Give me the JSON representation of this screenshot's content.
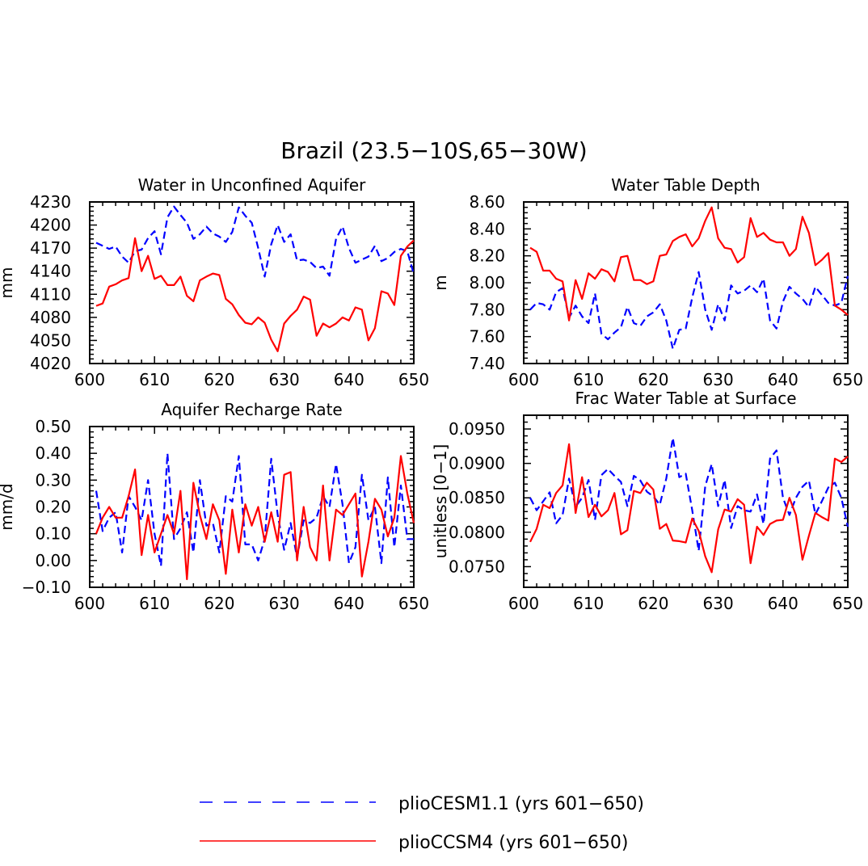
{
  "figure": {
    "title": "Brazil (23.5−10S,65−30W)"
  },
  "legend": {
    "placement": "bottom-center",
    "entries": [
      {
        "label": "plioCESM1.1 (yrs 601−650)",
        "color": "#0000ff",
        "style": "dashed"
      },
      {
        "label": "plioCCSM4 (yrs 601−650)",
        "color": "#ff0000",
        "style": "solid"
      }
    ]
  },
  "chart_data": [
    {
      "id": "aquifer",
      "type": "line",
      "title": "Water in Unconfined Aquifer",
      "xlabel": "",
      "ylabel": "mm",
      "xlim": [
        600,
        650
      ],
      "ylim": [
        4020,
        4230
      ],
      "xticks": [
        600,
        610,
        620,
        630,
        640,
        650
      ],
      "xtick_labels": [
        "600",
        "610",
        "620",
        "630",
        "640",
        "650"
      ],
      "yticks": [
        4020,
        4050,
        4080,
        4110,
        4140,
        4170,
        4200,
        4230
      ],
      "ytick_labels": [
        "4020",
        "4050",
        "4080",
        "4110",
        "4140",
        "4170",
        "4200",
        "4230"
      ],
      "x": [
        601,
        602,
        603,
        604,
        605,
        606,
        607,
        608,
        609,
        610,
        611,
        612,
        613,
        614,
        615,
        616,
        617,
        618,
        619,
        620,
        621,
        622,
        623,
        624,
        625,
        626,
        627,
        628,
        629,
        630,
        631,
        632,
        633,
        634,
        635,
        636,
        637,
        638,
        639,
        640,
        641,
        642,
        643,
        644,
        645,
        646,
        647,
        648,
        649,
        650
      ],
      "series": [
        {
          "name": "plioCESM1.1",
          "color": "#0000ff",
          "style": "dashed",
          "values": [
            4177,
            4173,
            4169,
            4172,
            4159,
            4151,
            4166,
            4168,
            4183,
            4192,
            4162,
            4210,
            4224,
            4213,
            4203,
            4182,
            4188,
            4198,
            4189,
            4185,
            4178,
            4191,
            4223,
            4212,
            4203,
            4170,
            4133,
            4175,
            4200,
            4178,
            4188,
            4154,
            4155,
            4152,
            4144,
            4146,
            4134,
            4182,
            4198,
            4170,
            4151,
            4155,
            4159,
            4173,
            4153,
            4157,
            4165,
            4169,
            4166,
            4136
          ]
        },
        {
          "name": "plioCCSM4",
          "color": "#ff0000",
          "style": "solid",
          "values": [
            4095,
            4098,
            4120,
            4123,
            4128,
            4131,
            4183,
            4140,
            4160,
            4130,
            4134,
            4122,
            4122,
            4133,
            4108,
            4101,
            4128,
            4133,
            4137,
            4135,
            4104,
            4097,
            4083,
            4073,
            4071,
            4080,
            4073,
            4051,
            4036,
            4072,
            4082,
            4090,
            4107,
            4103,
            4056,
            4072,
            4067,
            4072,
            4080,
            4076,
            4093,
            4090,
            4050,
            4066,
            4114,
            4111,
            4096,
            4160,
            4172,
            4180
          ]
        }
      ]
    },
    {
      "id": "wtd",
      "type": "line",
      "title": "Water Table Depth",
      "xlabel": "",
      "ylabel": "m",
      "xlim": [
        600,
        650
      ],
      "ylim": [
        7.4,
        8.6
      ],
      "xticks": [
        600,
        610,
        620,
        630,
        640,
        650
      ],
      "xtick_labels": [
        "600",
        "610",
        "620",
        "630",
        "640",
        "650"
      ],
      "yticks": [
        7.4,
        7.6,
        7.8,
        8.0,
        8.2,
        8.4,
        8.6
      ],
      "ytick_labels": [
        "7.40",
        "7.60",
        "7.80",
        "8.00",
        "8.20",
        "8.40",
        "8.60"
      ],
      "x": [
        601,
        602,
        603,
        604,
        605,
        606,
        607,
        608,
        609,
        610,
        611,
        612,
        613,
        614,
        615,
        616,
        617,
        618,
        619,
        620,
        621,
        622,
        623,
        624,
        625,
        626,
        627,
        628,
        629,
        630,
        631,
        632,
        633,
        634,
        635,
        636,
        637,
        638,
        639,
        640,
        641,
        642,
        643,
        644,
        645,
        646,
        647,
        648,
        649,
        650
      ],
      "series": [
        {
          "name": "plioCESM1.1",
          "color": "#0000ff",
          "style": "dashed",
          "values": [
            7.8,
            7.85,
            7.84,
            7.8,
            7.93,
            7.96,
            7.74,
            7.83,
            7.75,
            7.7,
            7.92,
            7.62,
            7.58,
            7.63,
            7.67,
            7.82,
            7.7,
            7.68,
            7.75,
            7.78,
            7.84,
            7.72,
            7.51,
            7.65,
            7.66,
            7.89,
            8.08,
            7.8,
            7.65,
            7.84,
            7.72,
            7.98,
            7.92,
            7.94,
            7.98,
            7.93,
            8.03,
            7.72,
            7.66,
            7.86,
            7.97,
            7.92,
            7.88,
            7.82,
            7.97,
            7.91,
            7.85,
            7.83,
            7.85,
            8.05
          ]
        },
        {
          "name": "plioCCSM4",
          "color": "#ff0000",
          "style": "solid",
          "values": [
            8.26,
            8.23,
            8.09,
            8.09,
            8.03,
            8.01,
            7.72,
            8.02,
            7.88,
            8.07,
            8.03,
            8.1,
            8.08,
            8.01,
            8.19,
            8.2,
            8.02,
            8.02,
            7.99,
            8.01,
            8.2,
            8.21,
            8.31,
            8.34,
            8.36,
            8.27,
            8.33,
            8.46,
            8.56,
            8.33,
            8.26,
            8.25,
            8.15,
            8.19,
            8.48,
            8.34,
            8.37,
            8.32,
            8.3,
            8.3,
            8.2,
            8.25,
            8.49,
            8.37,
            8.13,
            8.17,
            8.22,
            7.83,
            7.8,
            7.76
          ]
        }
      ]
    },
    {
      "id": "recharge",
      "type": "line",
      "title": "Aquifer Recharge Rate",
      "xlabel": "",
      "ylabel": "mm/d",
      "xlim": [
        600,
        650
      ],
      "ylim": [
        -0.1,
        0.5
      ],
      "xticks": [
        600,
        610,
        620,
        630,
        640,
        650
      ],
      "xtick_labels": [
        "600",
        "610",
        "620",
        "630",
        "640",
        "650"
      ],
      "yticks": [
        -0.1,
        0.0,
        0.1,
        0.2,
        0.3,
        0.4,
        0.5
      ],
      "ytick_labels": [
        "−0.10",
        "0.00",
        "0.10",
        "0.20",
        "0.30",
        "0.40",
        "0.50"
      ],
      "x": [
        601,
        602,
        603,
        604,
        605,
        606,
        607,
        608,
        609,
        610,
        611,
        612,
        613,
        614,
        615,
        616,
        617,
        618,
        619,
        620,
        621,
        622,
        623,
        624,
        625,
        626,
        627,
        628,
        629,
        630,
        631,
        632,
        633,
        634,
        635,
        636,
        637,
        638,
        639,
        640,
        641,
        642,
        643,
        644,
        645,
        646,
        647,
        648,
        649,
        650
      ],
      "series": [
        {
          "name": "plioCESM1.1",
          "color": "#0000ff",
          "style": "dashed",
          "values": [
            0.26,
            0.11,
            0.16,
            0.18,
            0.03,
            0.24,
            0.2,
            0.15,
            0.3,
            0.1,
            -0.02,
            0.4,
            0.08,
            0.12,
            0.18,
            0.03,
            0.3,
            0.13,
            0.14,
            0.03,
            0.24,
            0.22,
            0.39,
            0.06,
            0.06,
            0.0,
            0.08,
            0.38,
            0.17,
            0.04,
            0.14,
            0.01,
            0.15,
            0.14,
            0.16,
            0.24,
            0.2,
            0.36,
            0.21,
            -0.01,
            0.05,
            0.32,
            0.15,
            0.2,
            -0.01,
            0.31,
            0.05,
            0.28,
            0.08,
            0.08
          ]
        },
        {
          "name": "plioCCSM4",
          "color": "#ff0000",
          "style": "solid",
          "values": [
            0.1,
            0.16,
            0.2,
            0.16,
            0.16,
            0.24,
            0.34,
            0.02,
            0.17,
            0.03,
            0.1,
            0.17,
            0.1,
            0.26,
            -0.07,
            0.29,
            0.17,
            0.08,
            0.21,
            0.15,
            -0.05,
            0.19,
            0.03,
            0.21,
            0.13,
            0.2,
            0.07,
            0.18,
            0.07,
            0.32,
            0.33,
            0.0,
            0.2,
            0.05,
            0.0,
            0.28,
            0.0,
            0.19,
            0.17,
            0.21,
            0.25,
            -0.06,
            0.07,
            0.23,
            0.19,
            0.09,
            0.16,
            0.39,
            0.25,
            0.14
          ]
        }
      ]
    },
    {
      "id": "frac",
      "type": "line",
      "title": "Frac Water Table at Surface",
      "xlabel": "",
      "ylabel": "unitless [0−1]",
      "xlim": [
        600,
        650
      ],
      "ylim": [
        0.072,
        0.097
      ],
      "xticks": [
        600,
        610,
        620,
        630,
        640,
        650
      ],
      "xtick_labels": [
        "600",
        "610",
        "620",
        "630",
        "640",
        "650"
      ],
      "yticks": [
        0.075,
        0.08,
        0.085,
        0.09,
        0.095
      ],
      "ytick_labels": [
        "0.0750",
        "0.0800",
        "0.0850",
        "0.0900",
        "0.0950"
      ],
      "x": [
        601,
        602,
        603,
        604,
        605,
        606,
        607,
        608,
        609,
        610,
        611,
        612,
        613,
        614,
        615,
        616,
        617,
        618,
        619,
        620,
        621,
        622,
        623,
        624,
        625,
        626,
        627,
        628,
        629,
        630,
        631,
        632,
        633,
        634,
        635,
        636,
        637,
        638,
        639,
        640,
        641,
        642,
        643,
        644,
        645,
        646,
        647,
        648,
        649,
        650
      ],
      "series": [
        {
          "name": "plioCESM1.1",
          "color": "#0000ff",
          "style": "dashed",
          "values": [
            0.085,
            0.0832,
            0.0845,
            0.0858,
            0.0813,
            0.0825,
            0.0878,
            0.0837,
            0.085,
            0.0876,
            0.0818,
            0.0883,
            0.0892,
            0.0882,
            0.0873,
            0.0838,
            0.0882,
            0.0875,
            0.0859,
            0.0852,
            0.084,
            0.0878,
            0.0937,
            0.088,
            0.0885,
            0.0832,
            0.0773,
            0.0867,
            0.0899,
            0.0838,
            0.0876,
            0.0806,
            0.0838,
            0.0832,
            0.083,
            0.0855,
            0.0812,
            0.0907,
            0.0919,
            0.085,
            0.0825,
            0.085,
            0.0866,
            0.0875,
            0.0826,
            0.0845,
            0.0865,
            0.0872,
            0.085,
            0.0808
          ]
        },
        {
          "name": "plioCCSM4",
          "color": "#ff0000",
          "style": "solid",
          "values": [
            0.0786,
            0.0805,
            0.084,
            0.0835,
            0.0857,
            0.0868,
            0.0928,
            0.0828,
            0.088,
            0.0822,
            0.084,
            0.0823,
            0.0832,
            0.0857,
            0.0797,
            0.0803,
            0.086,
            0.0857,
            0.0872,
            0.0862,
            0.0805,
            0.0812,
            0.0788,
            0.0787,
            0.0785,
            0.082,
            0.0802,
            0.0765,
            0.0742,
            0.0804,
            0.0833,
            0.083,
            0.0848,
            0.084,
            0.0755,
            0.0808,
            0.0796,
            0.0812,
            0.0817,
            0.0818,
            0.085,
            0.0825,
            0.076,
            0.0795,
            0.0828,
            0.0822,
            0.0817,
            0.0907,
            0.0902,
            0.091
          ]
        }
      ]
    }
  ]
}
